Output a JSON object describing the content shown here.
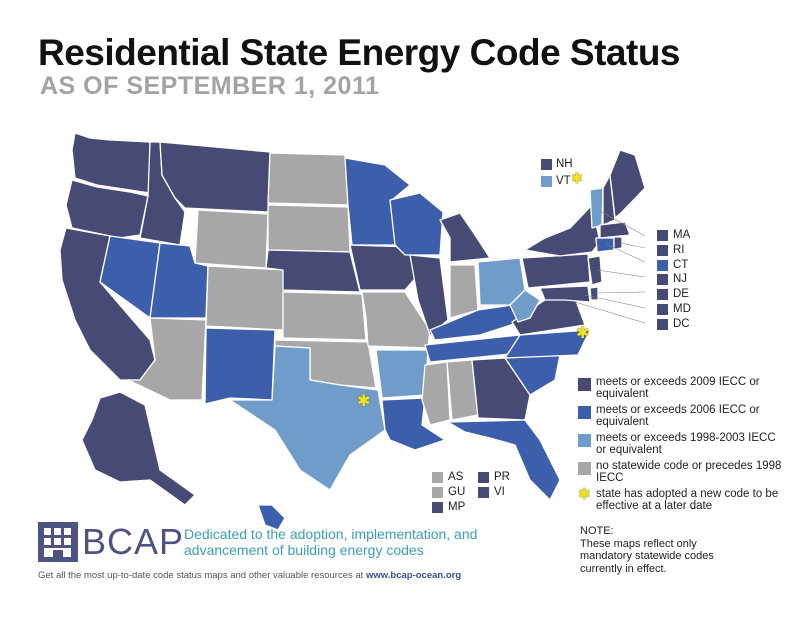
{
  "header": {
    "title": "Residential State Energy Code Status",
    "subtitle": "AS OF SEPTEMBER 1, 2011"
  },
  "colors": {
    "iecc_2009": "#474a75",
    "iecc_2006": "#3d5fab",
    "iecc_1998_2003": "#6f9cc8",
    "no_code": "#a7a7a7",
    "star": "#f2e32a"
  },
  "northeast_labels": {
    "nh": "NH",
    "vt": "VT",
    "ma": "MA",
    "ri": "RI",
    "ct": "CT",
    "nj": "NJ",
    "de": "DE",
    "md": "MD",
    "dc": "DC"
  },
  "territories": {
    "as": "AS",
    "gu": "GU",
    "mp": "MP",
    "pr": "PR",
    "vi": "VI"
  },
  "legend": {
    "iecc_2009": "meets or exceeds 2009 IECC or equivalent",
    "iecc_2006": "meets or exceeds 2006 IECC or equivalent",
    "iecc_1998_2003": "meets or exceeds 1998-2003 IECC or equivalent",
    "no_code": "no statewide code or precedes 1998 IECC",
    "future": "state has adopted a new code to be effective at a later date"
  },
  "note": {
    "heading": "NOTE:",
    "body": "These maps reflect only mandatory statewide codes currently in effect."
  },
  "branding": {
    "name": "BCAP",
    "tagline": "Dedicated to the adoption, implementation, and advancement of building energy codes",
    "footer_text": "Get all the most up-to-date code status maps and other valuable resources at ",
    "footer_link": "www.bcap-ocean.org"
  }
}
